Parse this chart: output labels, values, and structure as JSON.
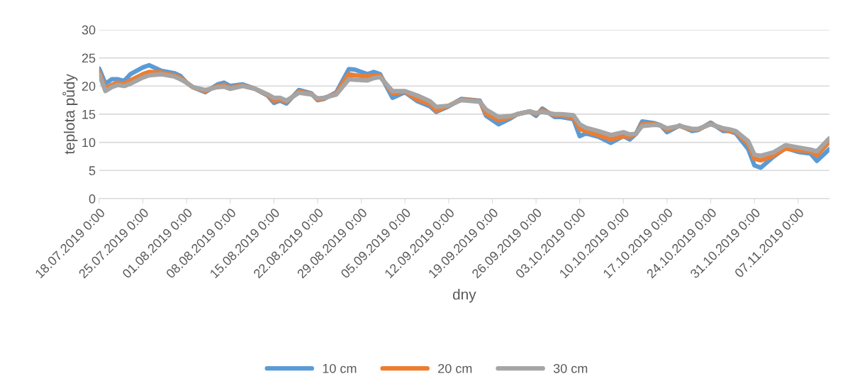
{
  "chart_data": {
    "type": "line",
    "xlabel": "dny",
    "ylabel": "teplota půdy",
    "x": [
      "2019-07-18",
      "2019-07-19",
      "2019-07-20",
      "2019-07-21",
      "2019-07-22",
      "2019-07-23",
      "2019-07-25",
      "2019-07-26",
      "2019-07-28",
      "2019-07-30",
      "2019-07-31",
      "2019-08-01",
      "2019-08-02",
      "2019-08-04",
      "2019-08-06",
      "2019-08-07",
      "2019-08-08",
      "2019-08-10",
      "2019-08-12",
      "2019-08-14",
      "2019-08-15",
      "2019-08-16",
      "2019-08-17",
      "2019-08-19",
      "2019-08-21",
      "2019-08-22",
      "2019-08-23",
      "2019-08-25",
      "2019-08-27",
      "2019-08-28",
      "2019-08-30",
      "2019-08-31",
      "2019-09-01",
      "2019-09-03",
      "2019-09-05",
      "2019-09-07",
      "2019-09-09",
      "2019-09-10",
      "2019-09-12",
      "2019-09-14",
      "2019-09-17",
      "2019-09-18",
      "2019-09-20",
      "2019-09-22",
      "2019-09-23",
      "2019-09-25",
      "2019-09-26",
      "2019-09-27",
      "2019-09-29",
      "2019-09-30",
      "2019-10-02",
      "2019-10-03",
      "2019-10-04",
      "2019-10-06",
      "2019-10-08",
      "2019-10-10",
      "2019-10-11",
      "2019-10-12",
      "2019-10-13",
      "2019-10-15",
      "2019-10-16",
      "2019-10-17",
      "2019-10-19",
      "2019-10-21",
      "2019-10-22",
      "2019-10-24",
      "2019-10-26",
      "2019-10-27",
      "2019-10-28",
      "2019-10-30",
      "2019-10-31",
      "2019-11-01",
      "2019-11-03",
      "2019-11-05",
      "2019-11-07",
      "2019-11-09",
      "2019-11-10",
      "2019-11-12"
    ],
    "series": [
      {
        "name": "10 cm",
        "color": "#5b9bd5",
        "values": [
          23.1,
          20.4,
          21.2,
          21.2,
          20.9,
          22.1,
          23.3,
          23.7,
          22.7,
          22.3,
          21.8,
          20.6,
          19.8,
          18.9,
          20.3,
          20.6,
          20.0,
          20.3,
          19.5,
          18.3,
          17.0,
          17.4,
          16.9,
          19.3,
          18.7,
          17.5,
          17.7,
          18.9,
          23.0,
          22.9,
          22.1,
          22.5,
          22.1,
          17.9,
          18.9,
          17.3,
          16.4,
          15.4,
          16.4,
          17.7,
          17.4,
          14.7,
          13.2,
          14.3,
          15.0,
          15.5,
          14.7,
          16.0,
          14.5,
          14.5,
          14.1,
          11.1,
          11.6,
          11.0,
          9.9,
          11.1,
          10.5,
          11.5,
          13.7,
          13.4,
          13.0,
          11.8,
          13.0,
          12.0,
          12.2,
          13.5,
          12.0,
          12.0,
          11.6,
          8.8,
          5.9,
          5.5,
          7.4,
          9.0,
          8.3,
          8.0,
          6.7,
          8.8
        ]
      },
      {
        "name": "20 cm",
        "color": "#ed7d31",
        "values": [
          22.5,
          19.5,
          20.2,
          20.6,
          20.4,
          21.0,
          22.1,
          22.5,
          22.4,
          21.9,
          21.5,
          20.6,
          19.8,
          19.1,
          20.0,
          20.2,
          19.7,
          20.1,
          19.5,
          18.4,
          17.4,
          17.6,
          17.2,
          19.0,
          18.6,
          17.6,
          17.8,
          18.7,
          22.1,
          21.9,
          21.7,
          21.8,
          21.8,
          18.7,
          19.0,
          17.6,
          16.8,
          15.6,
          16.5,
          17.6,
          17.3,
          15.1,
          13.9,
          14.5,
          15.0,
          15.5,
          15.0,
          15.7,
          14.8,
          14.8,
          14.4,
          12.4,
          12.0,
          11.3,
          10.5,
          11.1,
          11.0,
          11.5,
          13.2,
          13.2,
          13.0,
          12.2,
          12.9,
          12.2,
          12.3,
          13.3,
          12.3,
          12.0,
          11.8,
          9.7,
          7.1,
          6.8,
          7.6,
          8.9,
          8.6,
          8.4,
          7.7,
          10.1
        ]
      },
      {
        "name": "30 cm",
        "color": "#a5a5a5",
        "values": [
          22.1,
          19.1,
          19.8,
          20.2,
          20.0,
          20.4,
          21.5,
          21.9,
          22.1,
          21.7,
          21.2,
          20.6,
          19.8,
          19.3,
          19.8,
          19.9,
          19.5,
          20.0,
          19.5,
          18.5,
          17.9,
          17.9,
          17.4,
          18.8,
          18.5,
          17.8,
          17.9,
          18.5,
          21.2,
          21.1,
          21.0,
          21.4,
          21.6,
          19.1,
          19.1,
          18.3,
          17.3,
          16.3,
          16.5,
          17.5,
          17.2,
          15.8,
          14.5,
          14.7,
          15.0,
          15.5,
          15.2,
          15.4,
          15.0,
          15.0,
          14.8,
          13.2,
          12.6,
          12.0,
          11.3,
          11.8,
          11.4,
          11.5,
          12.9,
          13.1,
          13.0,
          12.5,
          12.9,
          12.4,
          12.4,
          13.2,
          12.5,
          12.3,
          12.0,
          10.2,
          7.8,
          7.6,
          8.2,
          9.5,
          9.1,
          8.7,
          8.4,
          10.7
        ]
      }
    ],
    "xlim": [
      "2019-07-18",
      "2019-11-12"
    ],
    "xticks": [
      {
        "value": "2019-07-18",
        "label": "18.07.2019 0:00"
      },
      {
        "value": "2019-07-25",
        "label": "25.07.2019 0:00"
      },
      {
        "value": "2019-08-01",
        "label": "01.08.2019 0:00"
      },
      {
        "value": "2019-08-08",
        "label": "08.08.2019 0:00"
      },
      {
        "value": "2019-08-15",
        "label": "15.08.2019 0:00"
      },
      {
        "value": "2019-08-22",
        "label": "22.08.2019 0:00"
      },
      {
        "value": "2019-08-29",
        "label": "29.08.2019 0:00"
      },
      {
        "value": "2019-09-05",
        "label": "05.09.2019 0:00"
      },
      {
        "value": "2019-09-12",
        "label": "12.09.2019 0:00"
      },
      {
        "value": "2019-09-19",
        "label": "19.09.2019 0:00"
      },
      {
        "value": "2019-09-26",
        "label": "26.09.2019 0:00"
      },
      {
        "value": "2019-10-03",
        "label": "03.10.2019 0:00"
      },
      {
        "value": "2019-10-10",
        "label": "10.10.2019 0:00"
      },
      {
        "value": "2019-10-17",
        "label": "17.10.2019 0:00"
      },
      {
        "value": "2019-10-24",
        "label": "24.10.2019 0:00"
      },
      {
        "value": "2019-10-31",
        "label": "31.10.2019 0:00"
      },
      {
        "value": "2019-11-07",
        "label": "07.11.2019 0:00"
      }
    ],
    "ylim": [
      0,
      30
    ],
    "yticks": [
      0,
      5,
      10,
      15,
      20,
      25,
      30
    ],
    "grid": "y",
    "legend": "bottom",
    "marker": "none",
    "line_style": "solid"
  }
}
